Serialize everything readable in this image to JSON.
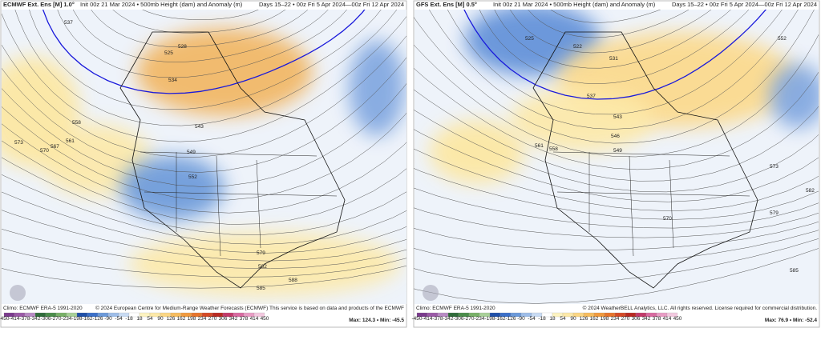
{
  "panels": [
    {
      "title": "ECMWF Ext. Ens [M] 1.0°",
      "subtitle": "Init 00z 21 Mar 2024 • 500mb Height (dam) and Anomaly (m)",
      "period": "Days 15–22 • 00z Fri 5 Apr 2024—00z Fri 12 Apr 2024",
      "climo": "Climo: ECMWF ERA-5 1991-2020",
      "credit": "© 2024 European Centre for Medium-Range Weather Forecasts (ECMWF) This service is based on data and products of the ECMWF",
      "stats": "Max: 124.3 • Min: -45.5",
      "contour_labels": [
        "537",
        "534",
        "525",
        "528",
        "543",
        "549",
        "552",
        "558",
        "561",
        "567",
        "570",
        "573",
        "579",
        "582",
        "585",
        "588"
      ]
    },
    {
      "title": "GFS Ext. Ens [M] 0.5°",
      "subtitle": "Init 00z 21 Mar 2024 • 500mb Height (dam) and Anomaly (m)",
      "period": "Days 15–22 • 00z Fri 5 Apr 2024—00z Fri 12 Apr 2024",
      "climo": "Climo: ECMWF ERA-5 1991-2020",
      "credit": "© 2024 WeatherBELL Analytics, LLC. All rights reserved. License required for commercial distribution.",
      "stats": "Max: 76.9 • Min: -52.4",
      "contour_labels": [
        "525",
        "522",
        "531",
        "537",
        "543",
        "546",
        "549",
        "552",
        "558",
        "561",
        "570",
        "573",
        "579",
        "582",
        "585"
      ]
    }
  ],
  "colorbar": [
    "-450",
    "-414",
    "-378",
    "-342",
    "-306",
    "-270",
    "-234",
    "-198",
    "-162",
    "-126",
    "-90",
    "-54",
    "-18",
    "18",
    "54",
    "90",
    "126",
    "162",
    "198",
    "234",
    "270",
    "306",
    "342",
    "378",
    "414",
    "450"
  ]
}
